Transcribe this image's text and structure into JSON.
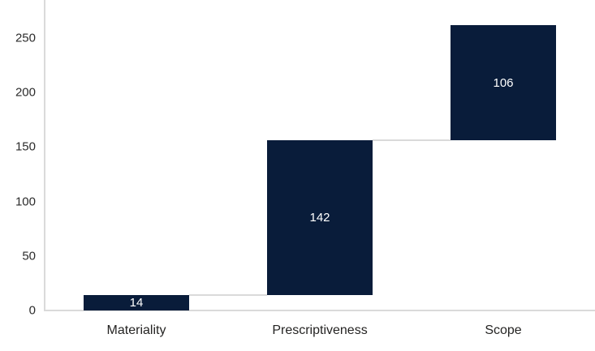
{
  "chart_data": {
    "type": "bar",
    "subtype": "waterfall",
    "title": "",
    "xlabel": "",
    "ylabel": "",
    "categories": [
      "Materiality",
      "Prescriptiveness",
      "Scope"
    ],
    "values": [
      14,
      142,
      106
    ],
    "cumulative": [
      14,
      156,
      262
    ],
    "data_labels": [
      "14",
      "142",
      "106"
    ],
    "y_ticks": [
      0,
      50,
      100,
      150,
      200,
      250
    ],
    "y_tick_labels": [
      "0",
      "50",
      "100",
      "150",
      "200",
      "250"
    ],
    "ylim": [
      0,
      285
    ],
    "grid": false,
    "legend": false,
    "colors": {
      "bar_fill": "#091c3a",
      "data_label_text": "#ffffff",
      "axis_line": "#dadada",
      "connector_line": "#dadada",
      "tick_label_text": "#2b2b2b",
      "category_label_text": "#252423",
      "background": "#ffffff"
    }
  }
}
